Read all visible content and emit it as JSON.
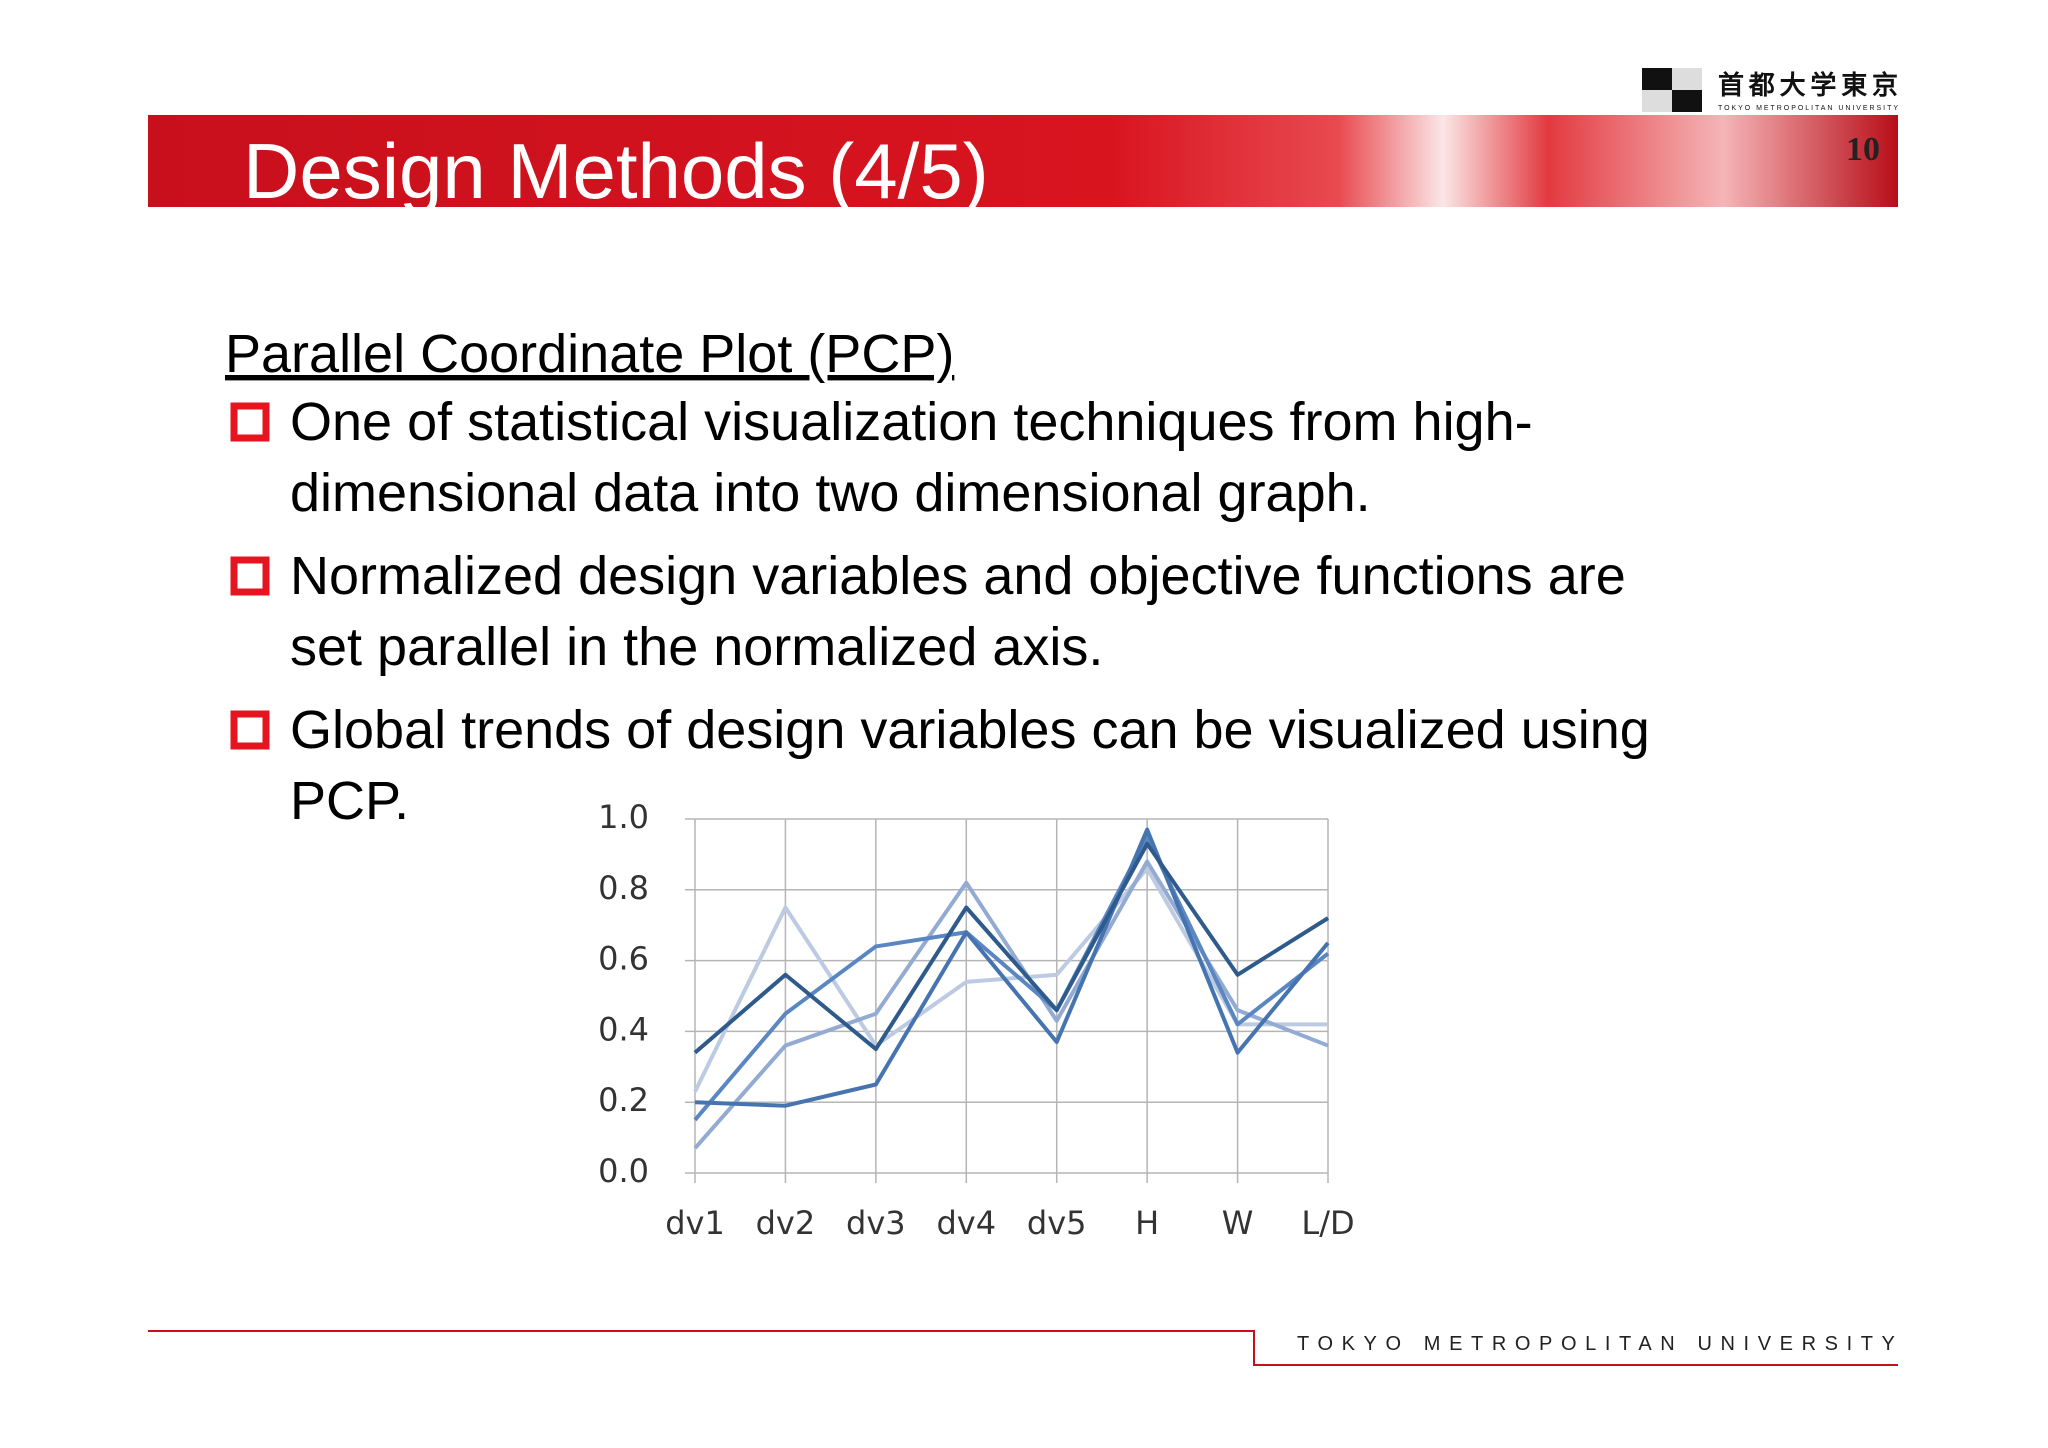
{
  "slide": {
    "logo": {
      "name_ja": "首都大学東京",
      "name_en": "TOKYO METROPOLITAN UNIVERSITY"
    },
    "title": "Design Methods (4/5)",
    "page_number": "10",
    "heading": "Parallel Coordinate Plot (PCP)",
    "bullets": [
      {
        "lines": [
          "One of statistical visualization techniques from high-",
          "dimensional data into two dimensional graph."
        ]
      },
      {
        "lines": [
          "Normalized design variables and objective functions are",
          "set parallel in the normalized axis."
        ]
      },
      {
        "lines": [
          "Global trends of design variables can be visualized using",
          "PCP."
        ]
      }
    ],
    "footer": "TOKYO METROPOLITAN UNIVERSITY"
  },
  "chart_data": {
    "type": "line",
    "categories": [
      "dv1",
      "dv2",
      "dv3",
      "dv4",
      "dv5",
      "H",
      "W",
      "L/D"
    ],
    "series": [
      {
        "color": "#2f5a8c",
        "values": [
          0.34,
          0.56,
          0.35,
          0.75,
          0.46,
          0.93,
          0.56,
          0.72
        ]
      },
      {
        "color": "#4674b0",
        "values": [
          0.2,
          0.19,
          0.25,
          0.68,
          0.37,
          0.97,
          0.34,
          0.65
        ]
      },
      {
        "color": "#5a86c2",
        "values": [
          0.15,
          0.45,
          0.64,
          0.68,
          0.46,
          0.95,
          0.42,
          0.62
        ]
      },
      {
        "color": "#93abd3",
        "values": [
          0.07,
          0.36,
          0.45,
          0.82,
          0.43,
          0.88,
          0.46,
          0.36
        ]
      },
      {
        "color": "#bccae2",
        "values": [
          0.23,
          0.75,
          0.36,
          0.54,
          0.56,
          0.86,
          0.42,
          0.42
        ]
      }
    ],
    "ylim": [
      0,
      1
    ],
    "yticks": [
      {
        "value": 0,
        "label": "0.0"
      },
      0.2,
      0.4,
      0.6,
      0.8,
      {
        "value": 1,
        "label": "1.0"
      }
    ],
    "grid": true
  }
}
